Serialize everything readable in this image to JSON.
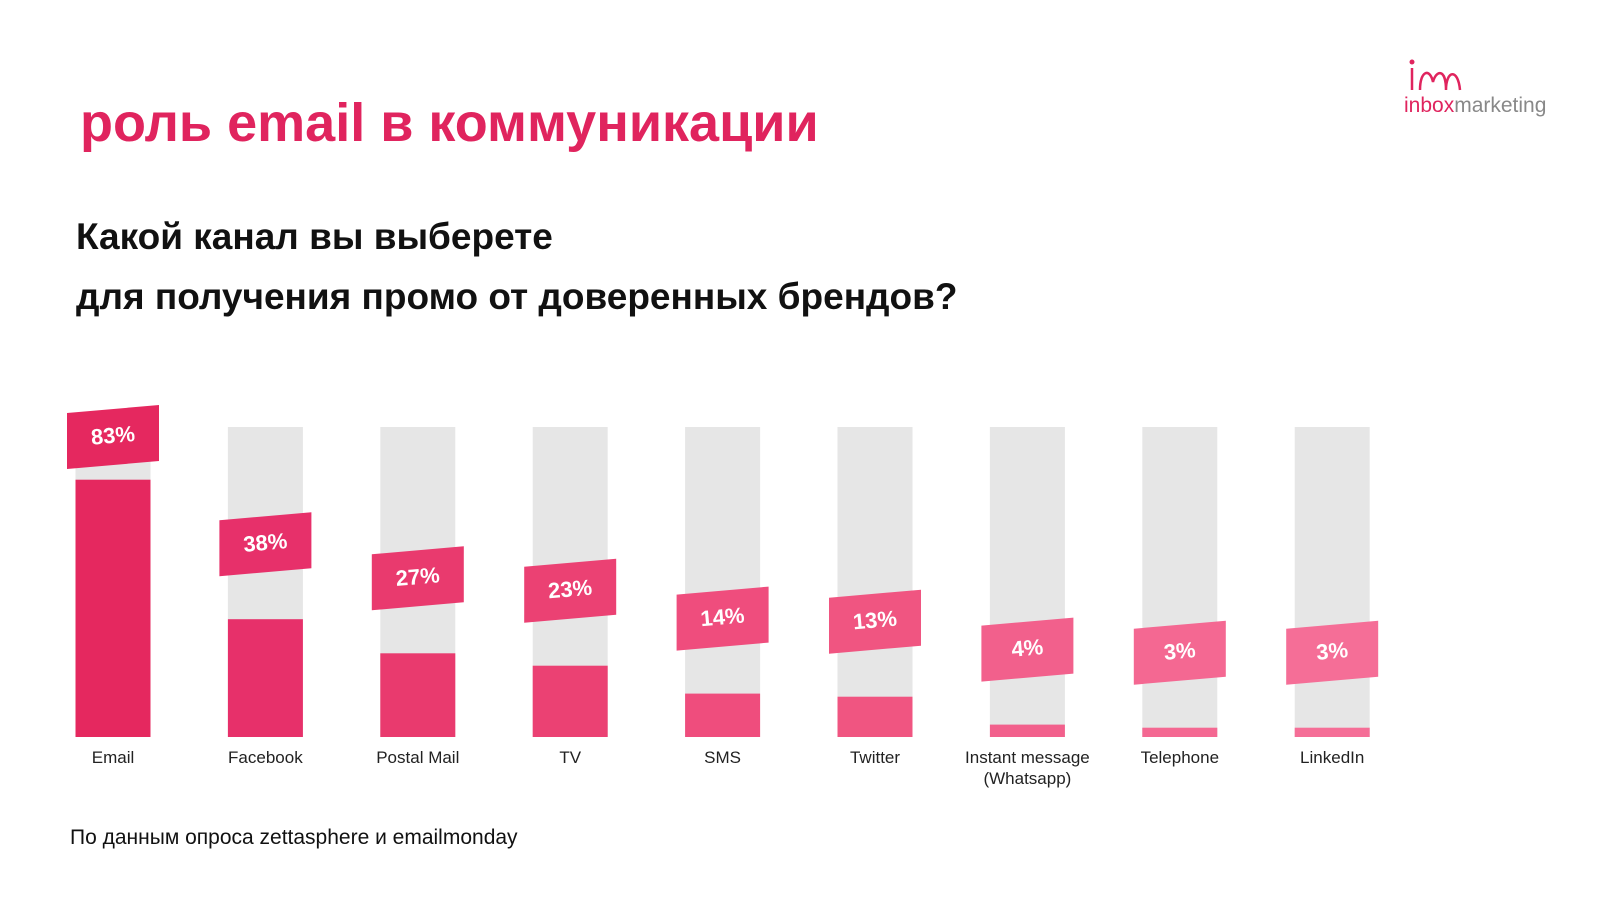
{
  "chart_data": {
    "type": "bar",
    "title": "роль email в коммуникации",
    "subtitle": [
      "Какой канал вы выберете",
      "для получения промо от доверенных брендов?"
    ],
    "categories": [
      "Email",
      "Facebook",
      "Postal Mail",
      "TV",
      "SMS",
      "Twitter",
      "Instant message (Whatsapp)",
      "Telephone",
      "LinkedIn"
    ],
    "values": [
      83,
      38,
      27,
      23,
      14,
      13,
      4,
      3,
      3
    ],
    "value_labels": [
      "83%",
      "38%",
      "27%",
      "23%",
      "14%",
      "13%",
      "4%",
      "3%",
      "3%"
    ],
    "colors": [
      "#e5285f",
      "#e7306a",
      "#e93a6e",
      "#eb4173",
      "#ef4d7d",
      "#f05581",
      "#f2608c",
      "#f46892",
      "#f56e97"
    ],
    "track_color": "#e6e6e6",
    "ylim": [
      0,
      100
    ]
  },
  "source": "По данным опроса zettasphere и emailmonday",
  "logo": [
    "inbox",
    "marketing"
  ]
}
